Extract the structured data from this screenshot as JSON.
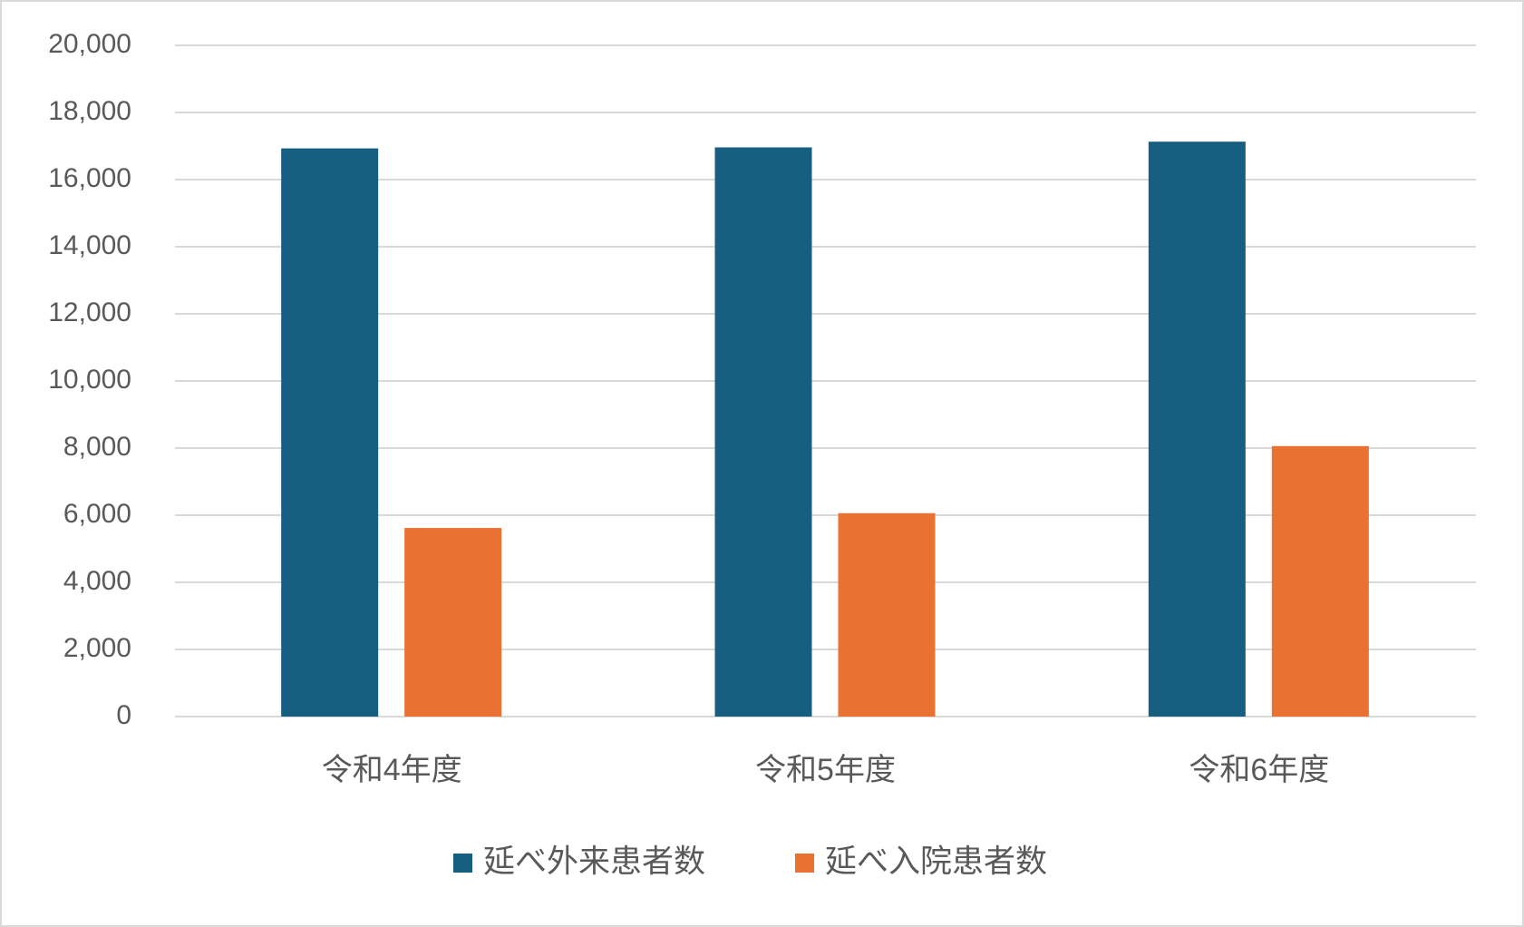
{
  "chart_data": {
    "type": "bar",
    "categories": [
      "令和4年度",
      "令和5年度",
      "令和6年度"
    ],
    "series": [
      {
        "name": "延べ外来患者数",
        "color": "#175f80",
        "values": [
          16930,
          16960,
          17130
        ]
      },
      {
        "name": "延べ入院患者数",
        "color": "#e97132",
        "values": [
          5620,
          6060,
          8060
        ]
      }
    ],
    "ylim": [
      0,
      20000
    ],
    "yticks": [
      0,
      {
        "value": 2000,
        "label": "2,000"
      },
      {
        "value": 4000,
        "label": "4,000"
      },
      {
        "value": 6000,
        "label": "6,000"
      },
      {
        "value": 8000,
        "label": "8,000"
      },
      {
        "value": 10000,
        "label": "10,000"
      },
      {
        "value": 12000,
        "label": "12,000"
      },
      {
        "value": 14000,
        "label": "14,000"
      },
      {
        "value": 16000,
        "label": "16,000"
      },
      {
        "value": 18000,
        "label": "18,000"
      },
      {
        "value": 20000,
        "label": "20,000"
      }
    ],
    "grid": true,
    "legend": "bottom"
  }
}
